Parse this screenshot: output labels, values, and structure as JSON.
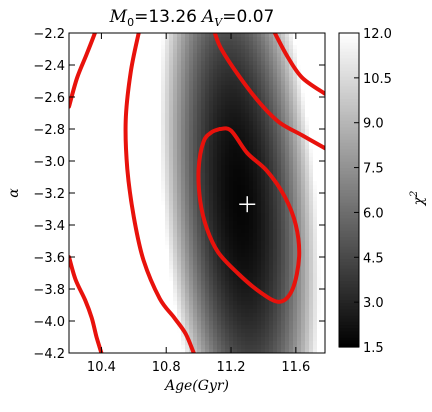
{
  "chart_data": {
    "type": "heatmap",
    "title": {
      "m0_symbol": "M",
      "m0_subscript": "0",
      "m0_value": "=13.26",
      "av_symbol": "A",
      "av_subscript": "V",
      "av_value": "=0.07"
    },
    "xlabel": "Age(Gyr)",
    "ylabel": "α",
    "colorbar_label": "χ",
    "colorbar_label_sup": "2",
    "xlim": [
      10.2,
      11.78
    ],
    "ylim": [
      -4.2,
      -2.2
    ],
    "colorbar_range": [
      1.5,
      12.0
    ],
    "x_ticks": [
      "10.4",
      "10.8",
      "11.2",
      "11.6"
    ],
    "x_tick_values": [
      10.4,
      10.8,
      11.2,
      11.6
    ],
    "y_ticks": [
      "−2.2",
      "−2.4",
      "−2.6",
      "−2.8",
      "−3.0",
      "−3.2",
      "−3.4",
      "−3.6",
      "−3.8",
      "−4.0",
      "−4.2"
    ],
    "y_tick_values": [
      -2.2,
      -2.4,
      -2.6,
      -2.8,
      -3.0,
      -3.2,
      -3.4,
      -3.6,
      -3.8,
      -4.0,
      -4.2
    ],
    "colorbar_ticks": [
      "12.0",
      "10.5",
      "9.0",
      "7.5",
      "6.0",
      "4.5",
      "3.0",
      "1.5"
    ],
    "colorbar_tick_values": [
      12.0,
      10.5,
      9.0,
      7.5,
      6.0,
      4.5,
      3.0,
      1.5
    ],
    "best_fit": {
      "x": 11.3,
      "y": -3.27
    },
    "contour_color": "#e8120c",
    "contours": [
      {
        "name": "inner",
        "points": [
          [
            11.13,
            -2.8
          ],
          [
            11.2,
            -2.81
          ],
          [
            11.3,
            -2.95
          ],
          [
            11.42,
            -3.06
          ],
          [
            11.53,
            -3.22
          ],
          [
            11.6,
            -3.4
          ],
          [
            11.62,
            -3.6
          ],
          [
            11.58,
            -3.8
          ],
          [
            11.5,
            -3.88
          ],
          [
            11.38,
            -3.82
          ],
          [
            11.24,
            -3.7
          ],
          [
            11.12,
            -3.57
          ],
          [
            11.05,
            -3.42
          ],
          [
            11.01,
            -3.25
          ],
          [
            11.0,
            -3.05
          ],
          [
            11.03,
            -2.88
          ],
          [
            11.08,
            -2.82
          ],
          [
            11.13,
            -2.8
          ]
        ]
      },
      {
        "name": "outer-top-center",
        "points": [
          [
            10.63,
            -2.2
          ],
          [
            10.58,
            -2.45
          ],
          [
            10.55,
            -2.75
          ],
          [
            10.56,
            -3.05
          ],
          [
            10.6,
            -3.35
          ],
          [
            10.66,
            -3.62
          ],
          [
            10.76,
            -3.86
          ],
          [
            10.85,
            -3.98
          ],
          [
            10.92,
            -4.08
          ],
          [
            10.97,
            -4.2
          ]
        ]
      },
      {
        "name": "outer-top-right",
        "points": [
          [
            11.47,
            -2.2
          ],
          [
            11.55,
            -2.35
          ],
          [
            11.64,
            -2.48
          ],
          [
            11.78,
            -2.58
          ]
        ]
      },
      {
        "name": "outer-right",
        "points": [
          [
            11.78,
            -2.92
          ],
          [
            11.64,
            -2.84
          ],
          [
            11.5,
            -2.76
          ],
          [
            11.38,
            -2.64
          ],
          [
            11.25,
            -2.47
          ],
          [
            11.14,
            -2.3
          ],
          [
            11.1,
            -2.2
          ]
        ]
      },
      {
        "name": "outer-left-top",
        "points": [
          [
            10.2,
            -2.66
          ],
          [
            10.25,
            -2.48
          ],
          [
            10.31,
            -2.33
          ],
          [
            10.36,
            -2.2
          ]
        ]
      },
      {
        "name": "outer-left-bottom",
        "points": [
          [
            10.2,
            -3.6
          ],
          [
            10.24,
            -3.74
          ],
          [
            10.3,
            -3.87
          ],
          [
            10.34,
            -3.98
          ],
          [
            10.37,
            -4.1
          ],
          [
            10.4,
            -4.2
          ]
        ]
      }
    ]
  }
}
